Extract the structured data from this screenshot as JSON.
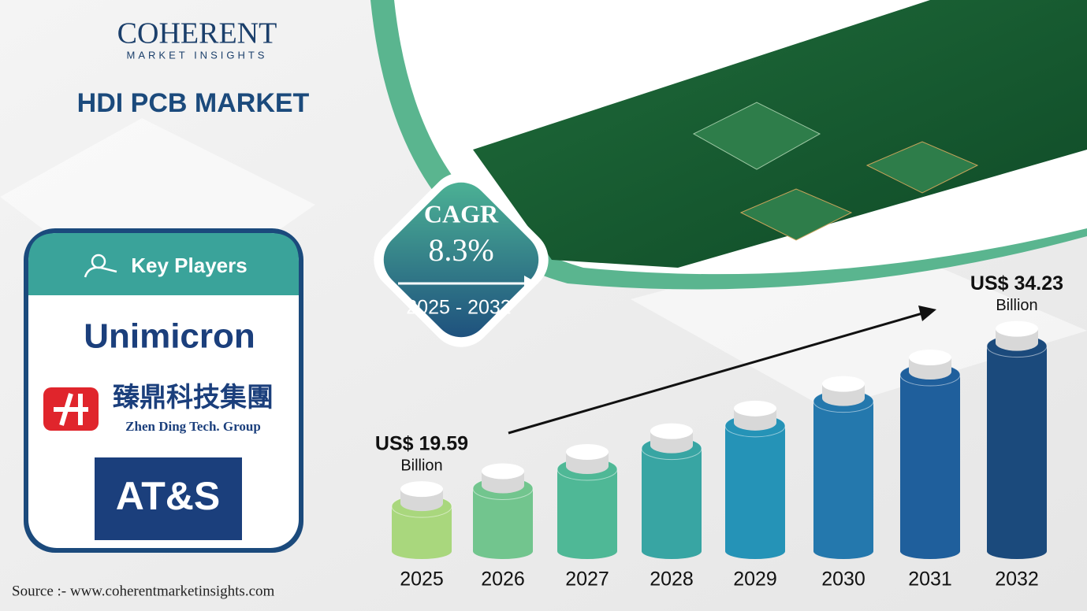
{
  "header": {
    "logo": "COHERENT",
    "logo_sub": "MARKET INSIGHTS",
    "title": "HDI PCB MARKET"
  },
  "key_players": {
    "title": "Key Players",
    "players": [
      {
        "name": "Unimicron"
      },
      {
        "name": "臻鼎科技集團",
        "subtitle": "Zhen Ding Tech. Group"
      },
      {
        "name": "AT&S"
      }
    ]
  },
  "cagr": {
    "label": "CAGR",
    "value": "8.3%",
    "period": "2025 - 2032"
  },
  "chart_data": {
    "type": "bar",
    "categories": [
      "2025",
      "2026",
      "2027",
      "2028",
      "2029",
      "2030",
      "2031",
      "2032"
    ],
    "values": [
      19.59,
      21.22,
      22.98,
      24.88,
      26.95,
      29.19,
      31.61,
      34.23
    ],
    "value_labels": [
      "US$ 19.59",
      null,
      null,
      null,
      null,
      null,
      null,
      "US$ 34.23"
    ],
    "unit_label": "Billion",
    "colors": [
      "#a9d77d",
      "#72c58e",
      "#4fb896",
      "#38a5a3",
      "#2593b7",
      "#2478ad",
      "#1f5f9c",
      "#1b4a7c"
    ],
    "ylim": [
      15.5,
      36
    ]
  },
  "source": "Source :- www.coherentmarketinsights.com"
}
